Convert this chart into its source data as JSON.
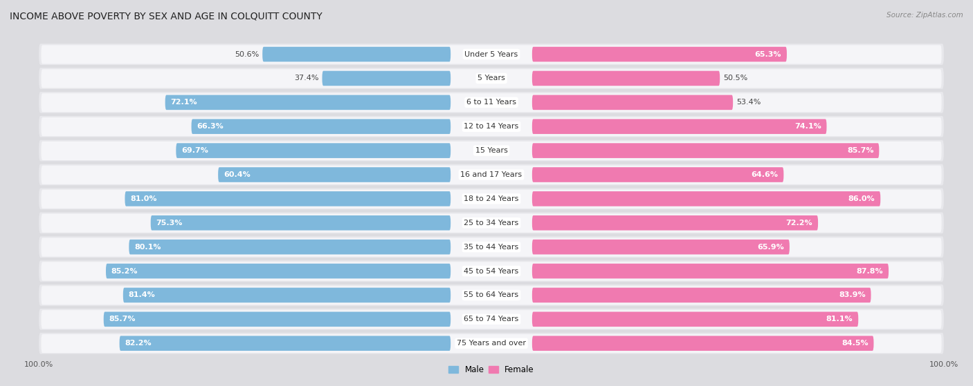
{
  "title": "INCOME ABOVE POVERTY BY SEX AND AGE IN COLQUITT COUNTY",
  "source": "Source: ZipAtlas.com",
  "categories": [
    "Under 5 Years",
    "5 Years",
    "6 to 11 Years",
    "12 to 14 Years",
    "15 Years",
    "16 and 17 Years",
    "18 to 24 Years",
    "25 to 34 Years",
    "35 to 44 Years",
    "45 to 54 Years",
    "55 to 64 Years",
    "65 to 74 Years",
    "75 Years and over"
  ],
  "male_values": [
    50.6,
    37.4,
    72.1,
    66.3,
    69.7,
    60.4,
    81.0,
    75.3,
    80.1,
    85.2,
    81.4,
    85.7,
    82.2
  ],
  "female_values": [
    65.3,
    50.5,
    53.4,
    74.1,
    85.7,
    64.6,
    86.0,
    72.2,
    65.9,
    87.8,
    83.9,
    81.1,
    84.5
  ],
  "male_color": "#7fb8dc",
  "female_color": "#f07ab0",
  "row_bg_color": "#e8e8ec",
  "row_inner_color": "#f5f5f8",
  "bg_color": "#dcdce0",
  "title_fontsize": 10,
  "label_fontsize": 8,
  "tick_fontsize": 8,
  "max_val": 100.0
}
